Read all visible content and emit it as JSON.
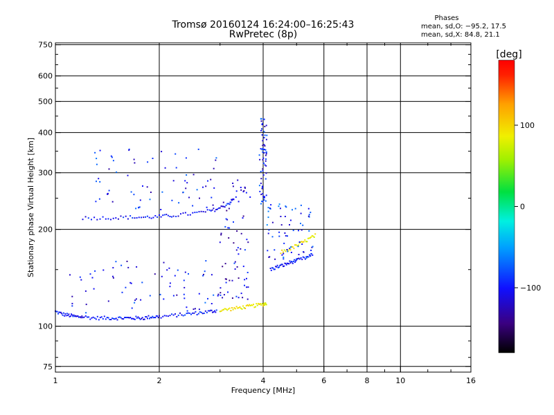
{
  "header": {
    "title_line1": "Tromsø 20160124 16:24:00–16:25:43",
    "title_line2": "RwPretec (8p)",
    "phases_title": "Phases",
    "phases_o": "mean, sd,O: −95.2, 17.5",
    "phases_x": "mean, sd,X:  84.8, 21.1"
  },
  "colorbar": {
    "label": "[deg]",
    "range": [
      -180,
      180
    ],
    "ticks": [
      {
        "value": 100,
        "label": "100"
      },
      {
        "value": 0,
        "label": "0"
      },
      {
        "value": -100,
        "label": "−100"
      }
    ]
  },
  "chart_data": {
    "type": "scatter",
    "title": "Tromsø 20160124 16:24:00–16:25:43",
    "subtitle": "RwPretec (8p)",
    "xlabel": "Frequency [MHz]",
    "ylabel": "Stationary phase Virtual Height [km]",
    "xscale": "log",
    "yscale": "log",
    "xlim": [
      1,
      16
    ],
    "ylim": [
      72,
      760
    ],
    "grid": true,
    "x_ticks": [
      {
        "value": 1,
        "label": "1"
      },
      {
        "value": 2,
        "label": "2"
      },
      {
        "value": 4,
        "label": "4"
      },
      {
        "value": 6,
        "label": "6"
      },
      {
        "value": 8,
        "label": "8"
      },
      {
        "value": 10,
        "label": "10"
      },
      {
        "value": 16,
        "label": "16"
      }
    ],
    "y_ticks": [
      {
        "value": 75,
        "label": "75"
      },
      {
        "value": 100,
        "label": "100"
      },
      {
        "value": 200,
        "label": "200"
      },
      {
        "value": 300,
        "label": "300"
      },
      {
        "value": 400,
        "label": "400"
      },
      {
        "value": 500,
        "label": "500"
      },
      {
        "value": 600,
        "label": "600"
      },
      {
        "value": 750,
        "label": "750"
      }
    ],
    "x_minor_ticks": [
      3,
      5,
      7,
      9,
      12,
      14
    ],
    "y_minor_ticks": [
      80,
      90,
      150,
      250,
      350,
      450,
      550,
      650,
      700
    ],
    "color_encoding": "phase in degrees",
    "traces": [
      {
        "description_id": "o_low_layer",
        "phase": -100,
        "points": [
          [
            1.0,
            111
          ],
          [
            1.05,
            109
          ],
          [
            1.1,
            108
          ],
          [
            1.15,
            107
          ],
          [
            1.2,
            107
          ],
          [
            1.3,
            106
          ],
          [
            1.4,
            106
          ],
          [
            1.5,
            106
          ],
          [
            1.6,
            106
          ],
          [
            1.7,
            106
          ],
          [
            1.8,
            106
          ],
          [
            1.9,
            107
          ],
          [
            2.0,
            107
          ],
          [
            2.2,
            108
          ],
          [
            2.4,
            109
          ],
          [
            2.6,
            110
          ],
          [
            2.8,
            111
          ],
          [
            2.95,
            112
          ]
        ]
      },
      {
        "description_id": "x_low_layer",
        "phase": 90,
        "points": [
          [
            3.0,
            112
          ],
          [
            3.2,
            113
          ],
          [
            3.4,
            114
          ],
          [
            3.6,
            115
          ],
          [
            3.8,
            116
          ],
          [
            4.0,
            117
          ],
          [
            4.1,
            118
          ]
        ]
      },
      {
        "description_id": "o_upper_layer",
        "phase": -100,
        "points": [
          [
            1.2,
            217
          ],
          [
            1.4,
            217
          ],
          [
            1.6,
            218
          ],
          [
            1.8,
            218
          ],
          [
            2.0,
            219
          ],
          [
            2.2,
            221
          ],
          [
            2.5,
            224
          ],
          [
            2.8,
            228
          ],
          [
            3.0,
            233
          ],
          [
            3.2,
            242
          ],
          [
            3.3,
            250
          ]
        ]
      },
      {
        "description_id": "o_f_trace",
        "phase": -100,
        "points": [
          [
            4.2,
            150
          ],
          [
            4.4,
            153
          ],
          [
            4.6,
            155
          ],
          [
            4.8,
            158
          ],
          [
            5.0,
            160
          ],
          [
            5.3,
            163
          ],
          [
            5.6,
            167
          ]
        ]
      },
      {
        "description_id": "x_f_trace",
        "phase": 90,
        "points": [
          [
            4.5,
            170
          ],
          [
            4.8,
            174
          ],
          [
            5.1,
            180
          ],
          [
            5.4,
            186
          ],
          [
            5.7,
            192
          ]
        ]
      }
    ],
    "scatter_clusters": [
      {
        "description_id": "spread_f_low",
        "phase": -110,
        "x_range": [
          3.0,
          3.7
        ],
        "y_range": [
          120,
          290
        ]
      },
      {
        "description_id": "spread_f_vertical",
        "phase": -100,
        "x_range": [
          3.9,
          4.1
        ],
        "y_range": [
          240,
          450
        ]
      },
      {
        "description_id": "spread_mid",
        "phase": -90,
        "x_range": [
          4.1,
          5.6
        ],
        "y_range": [
          160,
          240
        ]
      },
      {
        "description_id": "scattered_echoes",
        "phase": -100,
        "x_range": [
          1.1,
          3.0
        ],
        "y_range": [
          110,
          160
        ]
      },
      {
        "description_id": "upper_echoes",
        "phase": -100,
        "x_range": [
          1.3,
          3.0
        ],
        "y_range": [
          230,
          360
        ]
      }
    ]
  }
}
